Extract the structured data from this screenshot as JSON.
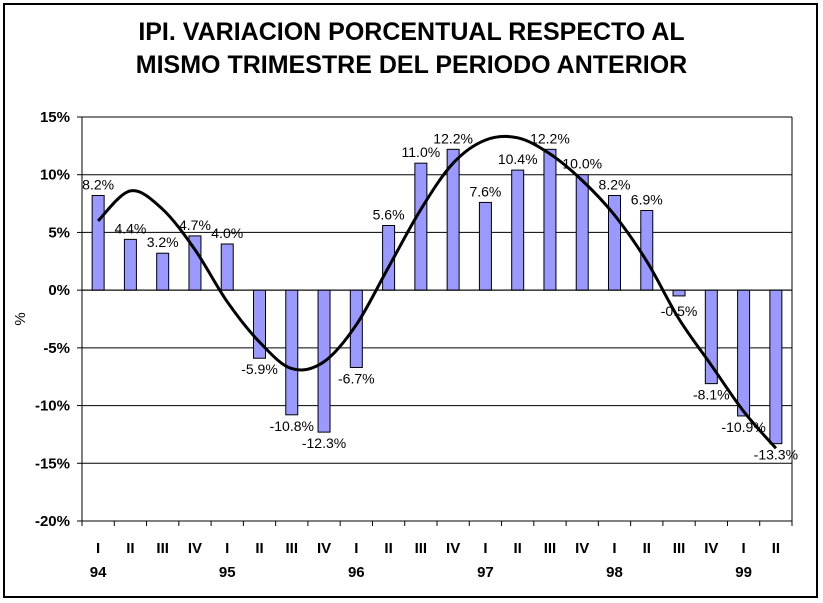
{
  "title_line1": "IPI. VARIACION PORCENTUAL RESPECTO AL",
  "title_line2": "MISMO TRIMESTRE DEL PERIODO ANTERIOR",
  "chart_data": {
    "type": "bar",
    "title": "IPI. VARIACION PORCENTUAL RESPECTO AL MISMO TRIMESTRE DEL PERIODO ANTERIOR",
    "xlabel": "",
    "ylabel": "%",
    "ylim": [
      -20,
      15
    ],
    "yticks": [
      15,
      10,
      5,
      0,
      -5,
      -10,
      -15,
      -20
    ],
    "ytick_labels": [
      "15%",
      "10%",
      "5%",
      "0%",
      "-5%",
      "-10%",
      "-15%",
      "-20%"
    ],
    "grid": true,
    "bar_color": "#9999ff",
    "categories": [
      "I",
      "II",
      "III",
      "IV",
      "I",
      "II",
      "III",
      "IV",
      "I",
      "II",
      "III",
      "IV",
      "I",
      "II",
      "III",
      "IV",
      "I",
      "II",
      "III",
      "IV",
      "I",
      "II"
    ],
    "year_labels": [
      {
        "label": "94",
        "index": 0
      },
      {
        "label": "95",
        "index": 4
      },
      {
        "label": "96",
        "index": 8
      },
      {
        "label": "97",
        "index": 12
      },
      {
        "label": "98",
        "index": 16
      },
      {
        "label": "99",
        "index": 20
      }
    ],
    "values": [
      8.2,
      4.4,
      3.2,
      4.7,
      4.0,
      -5.9,
      -10.8,
      -12.3,
      -6.7,
      5.6,
      11.0,
      12.2,
      7.6,
      10.4,
      12.2,
      10.0,
      8.2,
      6.9,
      -0.5,
      -8.1,
      -10.9,
      -13.3
    ],
    "data_labels": [
      "8.2%",
      "4.4%",
      "3.2%",
      "4.7%",
      "4.0%",
      "-5.9%",
      "-10.8%",
      "-12.3%",
      "-6.7%",
      "5.6%",
      "11.0%",
      "12.2%",
      "7.6%",
      "10.4%",
      "12.2%",
      "10.0%",
      "8.2%",
      "6.9%",
      "-0.5%",
      "-8.1%",
      "-10.9%",
      "-13.3%"
    ],
    "trendline": {
      "type": "polynomial",
      "color": "#000000",
      "values": [
        6.0,
        8.6,
        7.0,
        3.5,
        -1.0,
        -4.5,
        -6.8,
        -6.2,
        -3.0,
        2.0,
        7.0,
        11.0,
        13.0,
        13.2,
        11.8,
        9.5,
        6.5,
        2.5,
        -2.5,
        -6.5,
        -10.5,
        -13.7
      ]
    }
  }
}
